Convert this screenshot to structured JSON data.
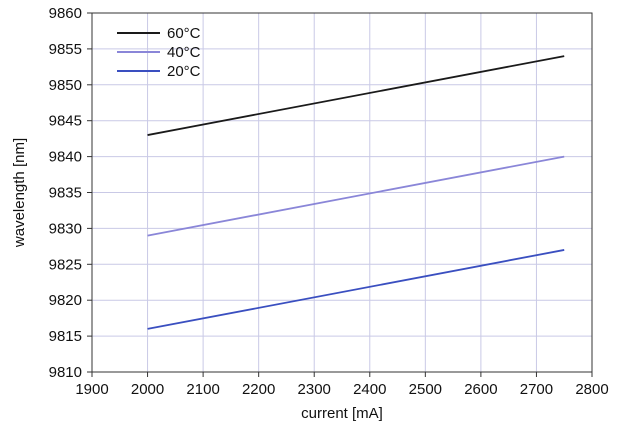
{
  "chart_data": {
    "type": "line",
    "xlabel": "current [mA]",
    "ylabel": "wavelength [nm]",
    "xlim": [
      1900,
      2800
    ],
    "ylim": [
      9810,
      9860
    ],
    "xticks": [
      1900,
      2000,
      2100,
      2200,
      2300,
      2400,
      2500,
      2600,
      2700,
      2800
    ],
    "yticks": [
      9810,
      9815,
      9820,
      9825,
      9830,
      9835,
      9840,
      9845,
      9850,
      9855,
      9860
    ],
    "grid": true,
    "legend_position": "top-left",
    "series": [
      {
        "name": "60°C",
        "color": "#1a1a1a",
        "x": [
          2000,
          2750
        ],
        "y": [
          9843,
          9854
        ]
      },
      {
        "name": "40°C",
        "color": "#8a86d8",
        "x": [
          2000,
          2750
        ],
        "y": [
          9829,
          9840
        ]
      },
      {
        "name": "20°C",
        "color": "#3a4fc0",
        "x": [
          2000,
          2750
        ],
        "y": [
          9816,
          9827
        ]
      }
    ]
  }
}
